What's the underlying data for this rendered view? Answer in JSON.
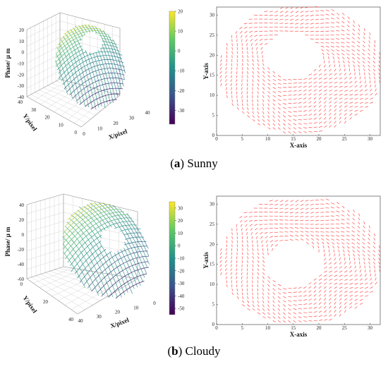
{
  "captions": [
    {
      "label": "a",
      "text": "Sunny"
    },
    {
      "label": "b",
      "text": "Cloudy"
    }
  ],
  "chart_data": [
    {
      "type": "surface",
      "panel": "a",
      "zlabel": "Phase/ μ m",
      "xlabel": "X/pixel",
      "ylabel": "Y/pixel",
      "z_ticks": [
        "20",
        "10",
        "0",
        "-10",
        "-20",
        "-30",
        "-40"
      ],
      "y_ticks": [
        "40",
        "30",
        "20",
        "10",
        "0"
      ],
      "x_ticks": [
        "0",
        "10",
        "20",
        "30",
        "40"
      ],
      "colorbar_ticks": [
        "20",
        "10",
        "0",
        "-10",
        "-20",
        "-30"
      ],
      "colorbar_range": [
        -37,
        20
      ],
      "colormap": [
        "#440154",
        "#3b528b",
        "#21918c",
        "#5ec962",
        "#fde725"
      ]
    },
    {
      "type": "quiver",
      "panel": "a",
      "xlabel": "X-axis",
      "ylabel": "Y-axis",
      "xlim": [
        0,
        32
      ],
      "ylim": [
        0,
        32
      ],
      "x_ticks": [
        "0",
        "5",
        "10",
        "15",
        "20",
        "25",
        "30"
      ],
      "y_ticks": [
        "0",
        "5",
        "10",
        "15",
        "20",
        "25",
        "30"
      ],
      "arrow_color": "#ff4d4d",
      "region": {
        "center": [
          16.5,
          16.5
        ],
        "outer_radius": 16,
        "hole_center": [
          15,
          20
        ],
        "hole_radius": 5.5
      }
    },
    {
      "type": "surface",
      "panel": "b",
      "zlabel": "Phase/ μ m",
      "xlabel": "X/pixel",
      "ylabel": "Y/pixel",
      "z_ticks": [
        "40",
        "20",
        "0",
        "-20",
        "-40",
        "-60"
      ],
      "y_ticks": [
        "0",
        "20",
        "40"
      ],
      "x_ticks": [
        "40",
        "30",
        "20",
        "10",
        "0"
      ],
      "colorbar_ticks": [
        "30",
        "20",
        "10",
        "0",
        "-10",
        "-20",
        "-30",
        "-40",
        "-50"
      ],
      "colorbar_range": [
        -55,
        35
      ],
      "colormap": [
        "#440154",
        "#3b528b",
        "#21918c",
        "#5ec962",
        "#fde725"
      ]
    },
    {
      "type": "quiver",
      "panel": "b",
      "xlabel": "X-axis",
      "ylabel": "Y-axis",
      "xlim": [
        0,
        32
      ],
      "ylim": [
        0,
        32
      ],
      "x_ticks": [
        "0",
        "5",
        "10",
        "15",
        "20",
        "25",
        "30"
      ],
      "y_ticks": [
        "0",
        "5",
        "10",
        "15",
        "20",
        "25",
        "30"
      ],
      "arrow_color": "#ff4d4d",
      "region": {
        "center": [
          16.5,
          16
        ],
        "outer_radius": 16,
        "hole_center": [
          15,
          15
        ],
        "hole_radius": 5.5
      }
    }
  ]
}
